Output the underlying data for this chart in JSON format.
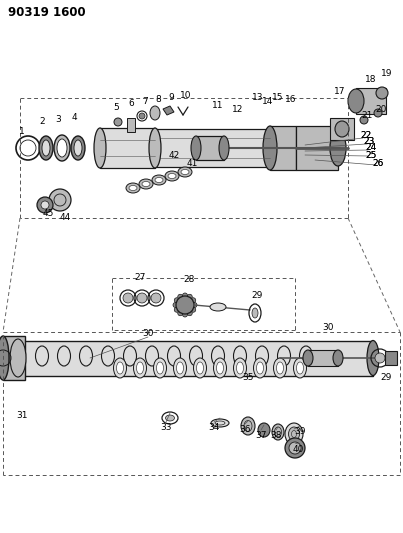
{
  "title": "90319 1600",
  "bg_color": "#ffffff",
  "line_color": "#1a1a1a",
  "fig_width": 4.03,
  "fig_height": 5.33,
  "dpi": 100,
  "gray_dark": "#555555",
  "gray_mid": "#888888",
  "gray_light": "#bbbbbb",
  "gray_lighter": "#dddddd",
  "gray_fill": "#999999"
}
